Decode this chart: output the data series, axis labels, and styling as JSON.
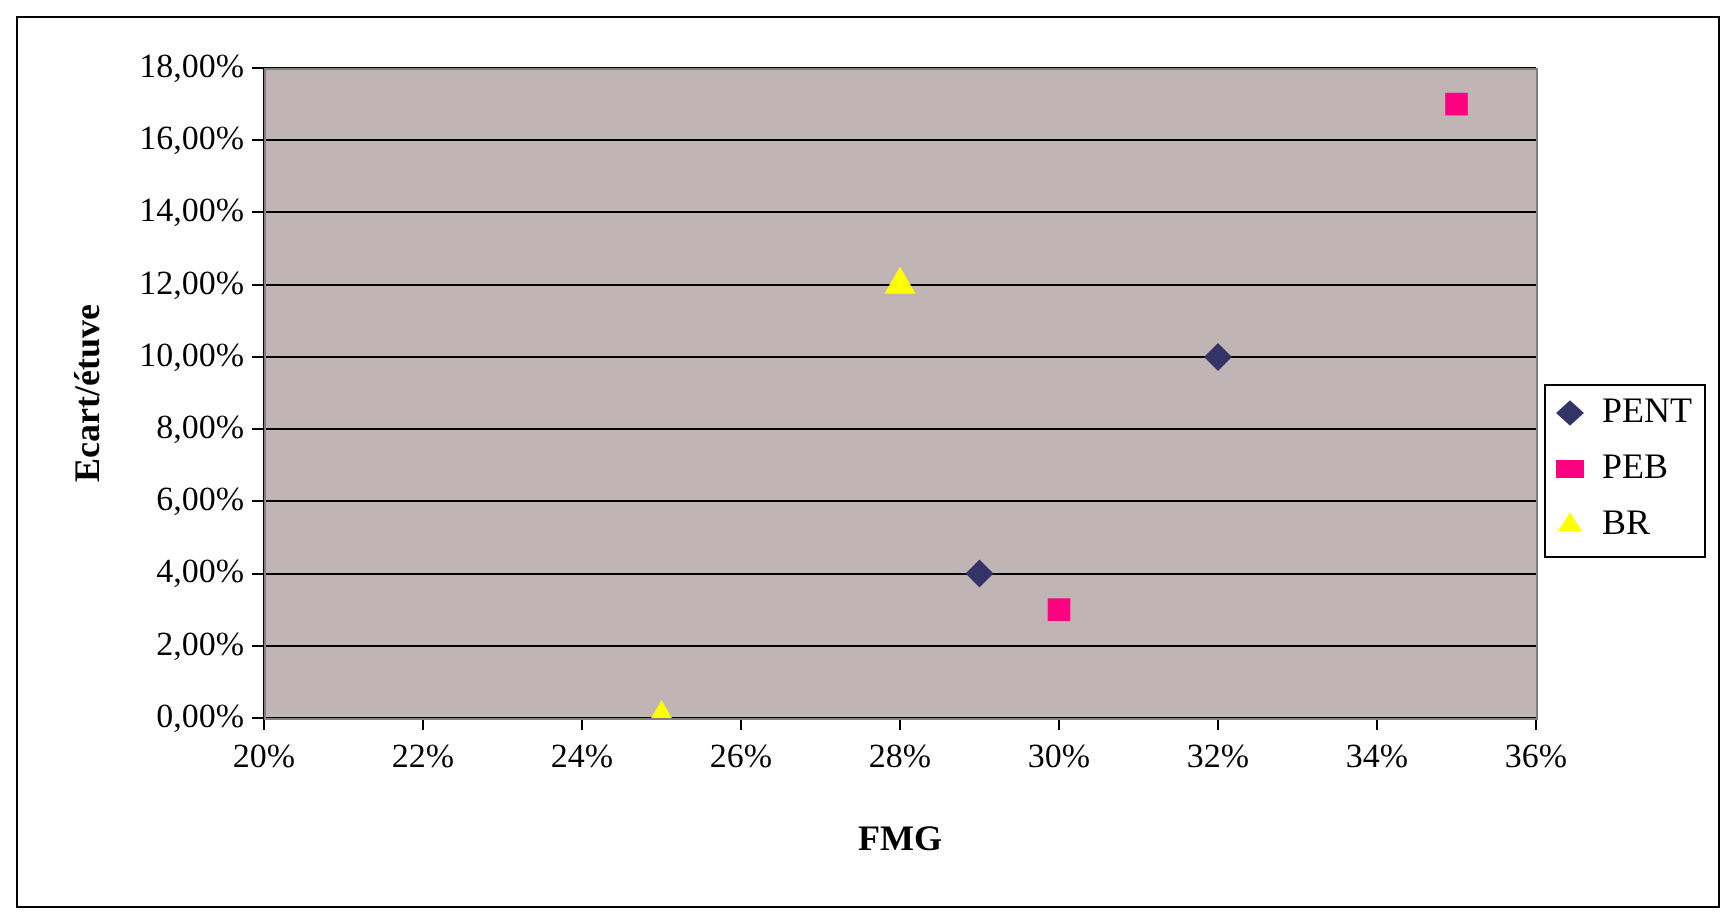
{
  "chart_data": {
    "type": "scatter",
    "xlabel": "FMG",
    "ylabel": "Ecart/étuve",
    "series": [
      {
        "name": "PENT",
        "color": "#333366",
        "marker": "diamond",
        "x": [
          29,
          32
        ],
        "values": [
          4,
          10
        ]
      },
      {
        "name": "PEB",
        "color": "#ff0080",
        "marker": "square",
        "x": [
          30,
          35
        ],
        "values": [
          3,
          17
        ]
      },
      {
        "name": "BR",
        "color": "#ffff00",
        "marker": "triangle",
        "x": [
          25,
          28
        ],
        "values": [
          0,
          12
        ]
      }
    ],
    "xlim": [
      20,
      36
    ],
    "xticks": [
      {
        "value": 20,
        "label": "20%"
      },
      {
        "value": 22,
        "label": "22%"
      },
      {
        "value": 24,
        "label": "24%"
      },
      {
        "value": 26,
        "label": "26%"
      },
      {
        "value": 28,
        "label": "28%"
      },
      {
        "value": 30,
        "label": "30%"
      },
      {
        "value": 32,
        "label": "32%"
      },
      {
        "value": 34,
        "label": "34%"
      },
      {
        "value": 36,
        "label": "36%"
      }
    ],
    "ylim": [
      0,
      18
    ],
    "yticks": [
      {
        "value": 0,
        "label": "0,00%"
      },
      {
        "value": 2,
        "label": "2,00%"
      },
      {
        "value": 4,
        "label": "4,00%"
      },
      {
        "value": 6,
        "label": "6,00%"
      },
      {
        "value": 8,
        "label": "8,00%"
      },
      {
        "value": 10,
        "label": "10,00%"
      },
      {
        "value": 12,
        "label": "12,00%"
      },
      {
        "value": 14,
        "label": "14,00%"
      },
      {
        "value": 16,
        "label": "16,00%"
      },
      {
        "value": 18,
        "label": "18,00%"
      }
    ],
    "grid": "y",
    "legend": "right"
  }
}
